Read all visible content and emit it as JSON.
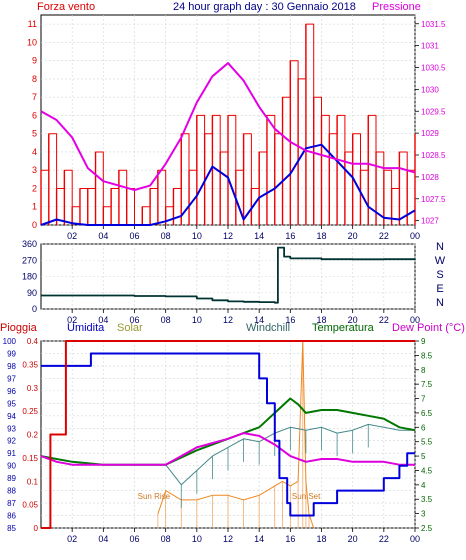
{
  "chart_data": [
    {
      "type": "line",
      "title": "24 hour graph day : 30 Gennaio 2018",
      "left_label": "Forza vento",
      "right_label": "Pressione",
      "x_ticks": [
        "02",
        "04",
        "06",
        "08",
        "10",
        "12",
        "14",
        "16",
        "18",
        "20",
        "22",
        "00"
      ],
      "y_left_ticks": [
        "0",
        "1",
        "2",
        "3",
        "4",
        "5",
        "6",
        "7",
        "8",
        "9",
        "10",
        "11"
      ],
      "y_left_range": [
        0,
        11.5
      ],
      "y_right_ticks": [
        "1027",
        "1027.5",
        "1028",
        "1028.5",
        "1029",
        "1029.5",
        "1030",
        "1030.5",
        "1031",
        "1031.5"
      ],
      "y_right_range": [
        1026.9,
        1031.7
      ],
      "series": [
        {
          "role": "pressure",
          "color": "#e400e4",
          "x": [
            0,
            1,
            2,
            3,
            4,
            5,
            6,
            7,
            8,
            9,
            10,
            11,
            12,
            13,
            14,
            15,
            16,
            17,
            18,
            19,
            20,
            21,
            22,
            23,
            24
          ],
          "values": [
            1029.5,
            1029.3,
            1028.9,
            1028.2,
            1027.9,
            1027.8,
            1027.7,
            1027.8,
            1028.3,
            1028.9,
            1029.7,
            1030.3,
            1030.6,
            1030.2,
            1029.6,
            1029.1,
            1028.8,
            1028.6,
            1028.5,
            1028.4,
            1028.3,
            1028.3,
            1028.2,
            1028.2,
            1028.1
          ]
        },
        {
          "role": "wind-avg",
          "color": "#0000dd",
          "x": [
            0,
            1,
            2,
            3,
            4,
            5,
            6,
            7,
            8,
            9,
            10,
            11,
            12,
            13,
            14,
            15,
            16,
            17,
            18,
            19,
            20,
            21,
            22,
            23,
            24
          ],
          "values": [
            0,
            0.3,
            0.1,
            0,
            0,
            0,
            0,
            0,
            0.2,
            0.5,
            1.6,
            3.2,
            2.6,
            0.3,
            1.5,
            2.0,
            2.8,
            4.2,
            4.4,
            3.5,
            2.6,
            1.0,
            0.4,
            0.3,
            0.8
          ]
        },
        {
          "role": "wind-gust",
          "color": "#ee0000",
          "x": [
            0,
            0.5,
            1,
            1.5,
            2,
            2.5,
            3,
            3.5,
            4,
            4.5,
            5,
            5.5,
            6,
            6.5,
            7,
            7.5,
            8,
            8.5,
            9,
            9.5,
            10,
            10.5,
            11,
            11.5,
            12,
            12.5,
            13,
            13.5,
            14,
            14.5,
            15,
            15.5,
            16,
            16.5,
            17,
            17.5,
            18,
            18.5,
            19,
            19.5,
            20,
            20.5,
            21,
            21.5,
            22,
            22.5,
            23,
            23.5,
            24
          ],
          "values": [
            3,
            5,
            2,
            3,
            1,
            2,
            2,
            4,
            1,
            2,
            3,
            2,
            0,
            1,
            2,
            3,
            1,
            2,
            5,
            3,
            6,
            5,
            6,
            4,
            6,
            3,
            5,
            2,
            4,
            6,
            5,
            7,
            9,
            8,
            11,
            7,
            6,
            5,
            6,
            4,
            5,
            3,
            6,
            4,
            3,
            2,
            4,
            3,
            5
          ]
        }
      ]
    },
    {
      "type": "line",
      "side_ticks_y": [
        "360",
        "270",
        "180",
        "90",
        "0"
      ],
      "side_labels": [
        "N",
        "W",
        "S",
        "E",
        "N"
      ],
      "x_ticks": [
        "02",
        "04",
        "06",
        "08",
        "10",
        "12",
        "14",
        "16",
        "18",
        "20",
        "22",
        "00"
      ],
      "y_range": [
        0,
        360
      ],
      "series": [
        {
          "role": "wind-direction",
          "color": "#003333",
          "x": [
            0,
            2,
            4,
            6,
            8,
            10,
            11,
            12,
            13,
            14,
            15,
            15.2,
            15.6,
            16,
            18,
            20,
            22,
            24
          ],
          "values": [
            75,
            75,
            75,
            72,
            70,
            58,
            48,
            42,
            40,
            38,
            35,
            340,
            290,
            280,
            276,
            275,
            276,
            277
          ]
        }
      ]
    },
    {
      "type": "line",
      "legend": [
        {
          "label": "Pioggia",
          "color": "#cc0000"
        },
        {
          "label": "Umidita",
          "color": "#0000bb"
        },
        {
          "label": "Solar",
          "color": "#999933"
        },
        {
          "label": "Windchill",
          "color": "#336666"
        },
        {
          "label": "Temperatura",
          "color": "#006600"
        },
        {
          "label": "Dew Point (°C)",
          "color": "#cc00cc"
        }
      ],
      "left_ticks_outer": [
        "100",
        "99",
        "98",
        "97",
        "96",
        "95",
        "94",
        "93",
        "92",
        "91",
        "90",
        "89",
        "88",
        "87",
        "86",
        "85"
      ],
      "left_ticks_inner": [
        "0.4",
        "0.35",
        "0.3",
        "0.25",
        "0.2",
        "0.15",
        "0.1",
        "0.05",
        "0"
      ],
      "right_ticks": [
        "9",
        "8.5",
        "8",
        "7.5",
        "7",
        "6.5",
        "6",
        "5.5",
        "5",
        "4.5",
        "4",
        "3.5",
        "3",
        "2.5"
      ],
      "x_ticks": [
        "02",
        "04",
        "06",
        "08",
        "10",
        "12",
        "14",
        "16",
        "18",
        "20",
        "22",
        "00"
      ],
      "annotations": [
        "Sun Rise",
        "Sun Set"
      ],
      "humidity_range": [
        85,
        100
      ],
      "temp_range": [
        2.5,
        9
      ],
      "rain_range": [
        0,
        0.4
      ],
      "series": [
        {
          "role": "rain",
          "color": "#dd0000",
          "x": [
            0,
            0.5,
            0.6,
            1.5,
            1.6,
            16.8,
            17,
            24
          ],
          "values": [
            0,
            0,
            0.2,
            0.2,
            0.4,
            0.4,
            0.4,
            0.4
          ]
        },
        {
          "role": "humidity",
          "color": "#0000dd",
          "x": [
            0,
            3,
            3.2,
            13.5,
            14,
            14.5,
            15,
            15.3,
            15.8,
            16,
            17,
            17.5,
            18,
            19,
            20,
            21,
            22,
            23,
            23.5,
            24
          ],
          "values": [
            98,
            98,
            99,
            99,
            97,
            95,
            92,
            89,
            87,
            86,
            86,
            87,
            87,
            88,
            88,
            88,
            89,
            90,
            91,
            91
          ]
        },
        {
          "role": "temperature",
          "color": "#007700",
          "x": [
            0,
            1,
            2,
            4,
            6,
            8,
            10,
            12,
            13,
            14,
            15,
            16,
            16.5,
            17,
            18,
            19,
            20,
            21,
            22,
            23,
            24
          ],
          "values": [
            5.0,
            4.9,
            4.8,
            4.7,
            4.7,
            4.7,
            5.2,
            5.6,
            5.8,
            6.0,
            6.5,
            7.0,
            6.8,
            6.5,
            6.6,
            6.6,
            6.5,
            6.4,
            6.3,
            6.0,
            5.9
          ]
        },
        {
          "role": "dewpoint",
          "color": "#dd00dd",
          "x": [
            0,
            1,
            2,
            4,
            6,
            8,
            10,
            12,
            13,
            14,
            15,
            16,
            17,
            18,
            19,
            20,
            21,
            22,
            23,
            24
          ],
          "values": [
            5.0,
            4.8,
            4.7,
            4.7,
            4.7,
            4.7,
            5.3,
            5.6,
            5.8,
            5.7,
            5.4,
            5.0,
            4.8,
            4.9,
            4.9,
            4.8,
            4.8,
            4.8,
            4.7,
            4.7
          ]
        },
        {
          "role": "windchill",
          "color": "#448888",
          "x": [
            0,
            2,
            4,
            6,
            8,
            9,
            10,
            11,
            12,
            13,
            14,
            15,
            16,
            17,
            18,
            19,
            20,
            21,
            22,
            23,
            24
          ],
          "values": [
            5.0,
            4.8,
            4.7,
            4.7,
            4.7,
            4.0,
            4.5,
            5.0,
            5.3,
            5.6,
            5.5,
            5.8,
            6.0,
            5.9,
            6.0,
            5.8,
            5.9,
            6.1,
            6.0,
            5.9,
            5.9
          ]
        },
        {
          "role": "solar",
          "color": "#ee8822",
          "x": [
            7.5,
            8,
            9,
            10,
            11,
            12,
            13,
            14,
            15,
            15.5,
            16,
            16.5,
            16.8,
            17,
            17.2,
            17.5
          ],
          "values": [
            0.03,
            0.08,
            0.06,
            0.06,
            0.07,
            0.07,
            0.06,
            0.07,
            0.09,
            0.1,
            0.09,
            0.1,
            0.4,
            0.1,
            0.03,
            0.0
          ]
        }
      ]
    }
  ]
}
